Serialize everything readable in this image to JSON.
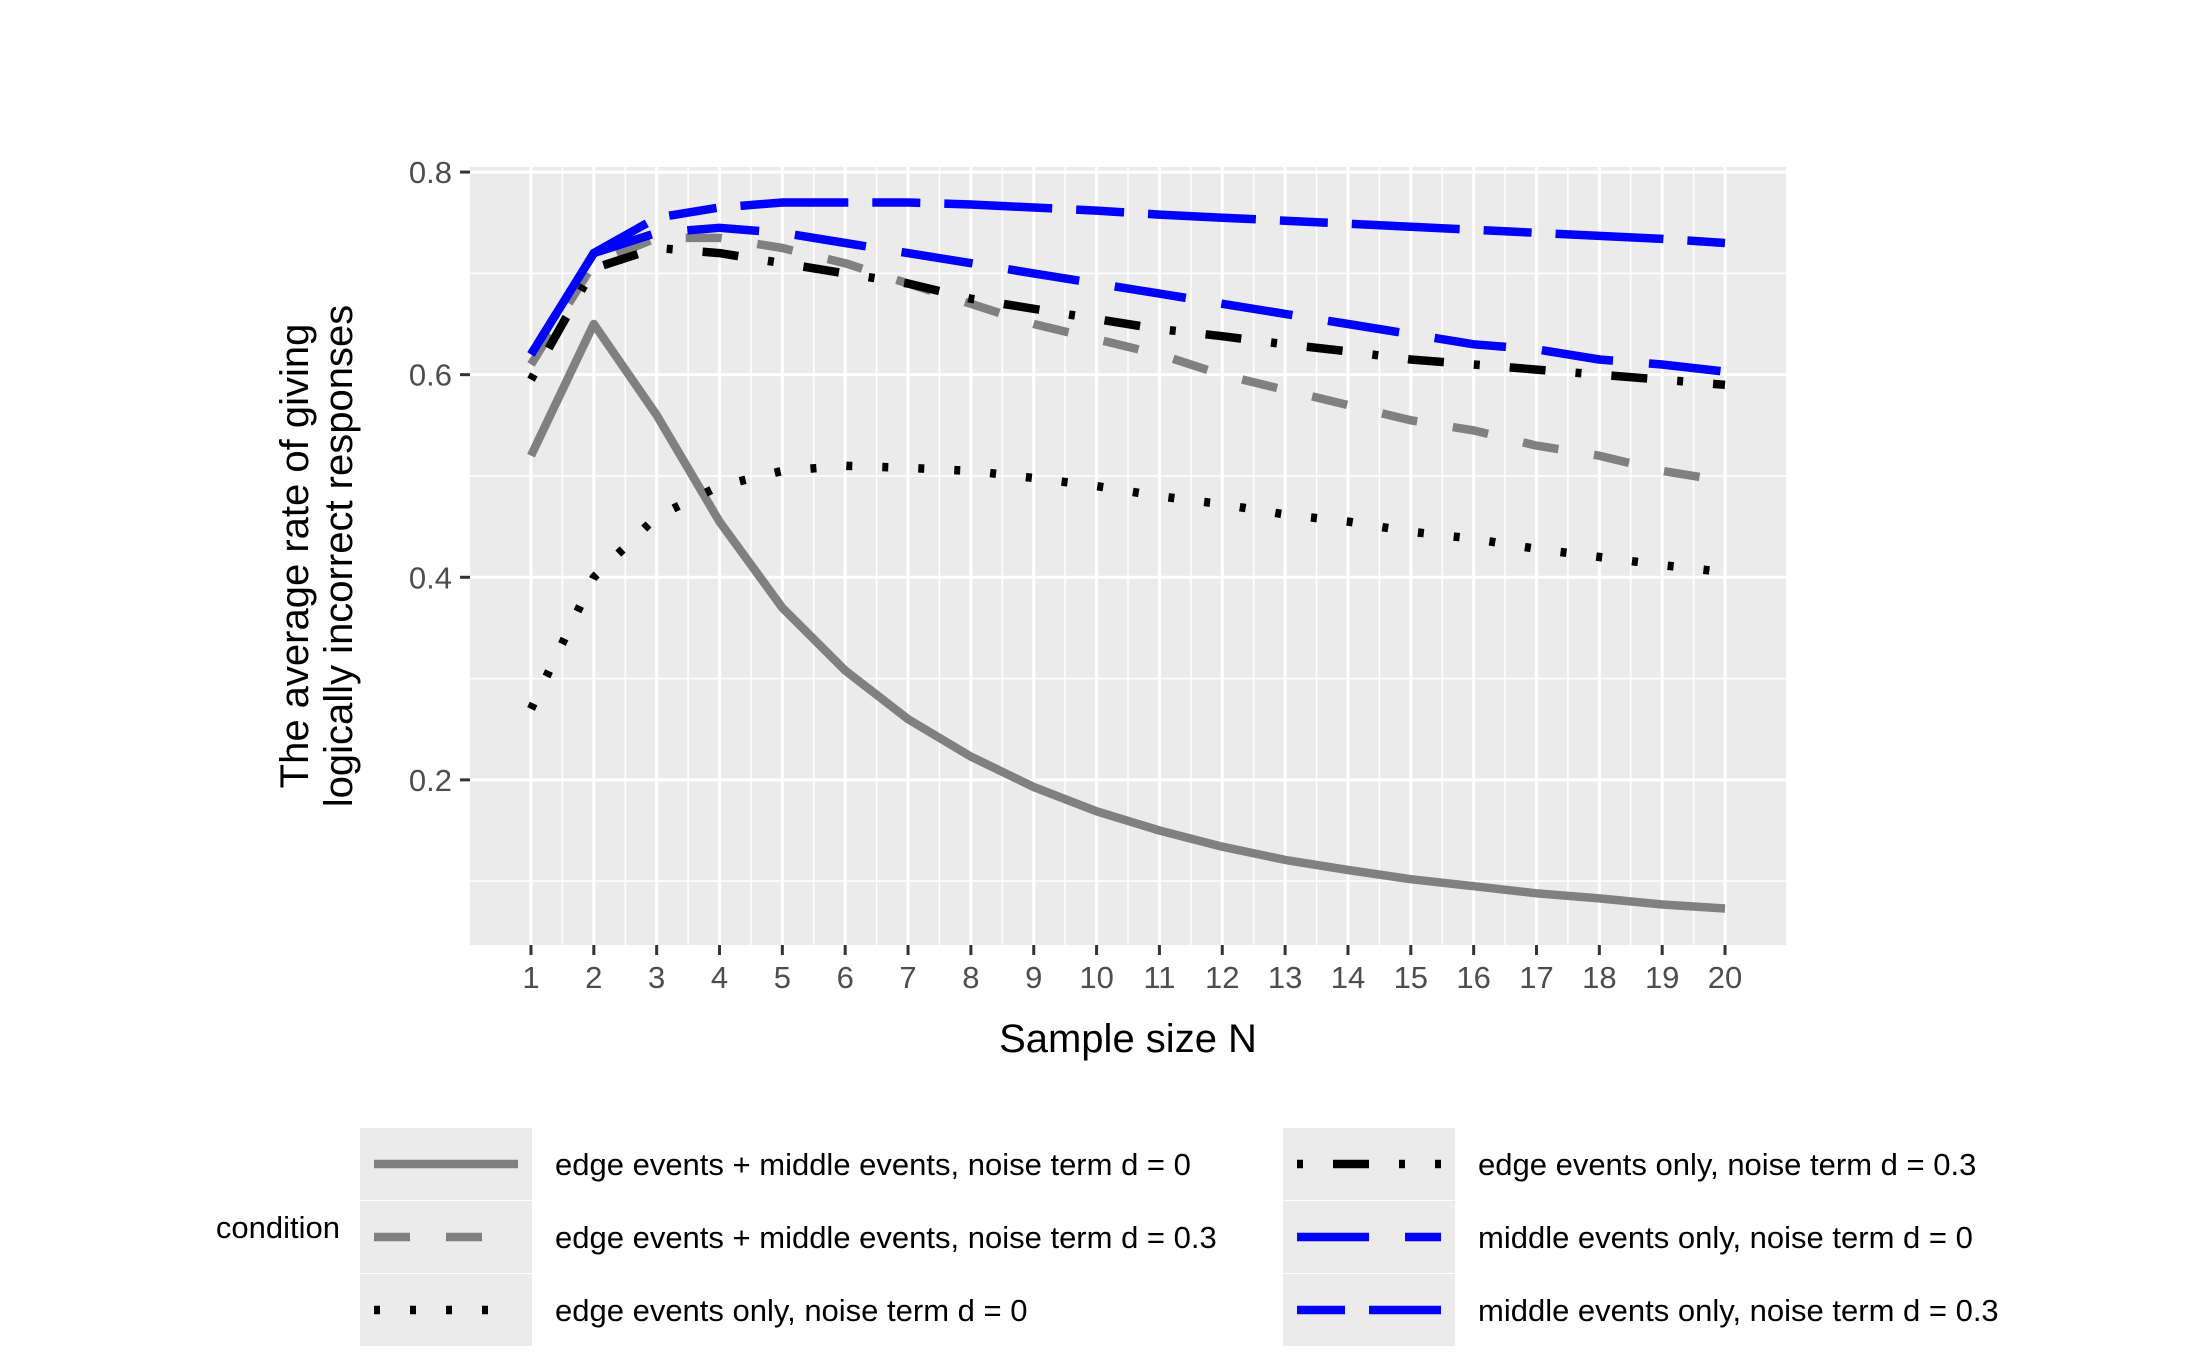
{
  "chart_data": {
    "type": "line",
    "title": "",
    "xlabel": "Sample size N",
    "ylabel_lines": [
      "The average rate of giving",
      "logically incorrect responses"
    ],
    "x": [
      1,
      2,
      3,
      4,
      5,
      6,
      7,
      8,
      9,
      10,
      11,
      12,
      13,
      14,
      15,
      16,
      17,
      18,
      19,
      20
    ],
    "x_ticks": [
      "1",
      "2",
      "3",
      "4",
      "5",
      "6",
      "7",
      "8",
      "9",
      "10",
      "11",
      "12",
      "13",
      "14",
      "15",
      "16",
      "17",
      "18",
      "19",
      "20"
    ],
    "y_ticks": [
      {
        "value": 0.2,
        "label": "0.2"
      },
      {
        "value": 0.4,
        "label": "0.4"
      },
      {
        "value": 0.6,
        "label": "0.6"
      },
      {
        "value": 0.8,
        "label": "0.8"
      }
    ],
    "xlim": [
      0.03,
      20.97
    ],
    "ylim": [
      0.037,
      0.805
    ],
    "grid": true,
    "background": "#ebebeb",
    "legend_title": "condition",
    "legend_position": "bottom",
    "series": [
      {
        "name": "edge events + middle events, noise term d = 0",
        "color": "#808080",
        "dash": "solid",
        "values": [
          0.52,
          0.65,
          0.56,
          0.455,
          0.37,
          0.308,
          0.26,
          0.223,
          0.193,
          0.169,
          0.15,
          0.134,
          0.121,
          0.111,
          0.102,
          0.095,
          0.088,
          0.083,
          0.077,
          0.073
        ]
      },
      {
        "name": "edge events + middle events, noise term d = 0.3",
        "color": "#808080",
        "dash": "dashed",
        "values": [
          0.61,
          0.71,
          0.735,
          0.735,
          0.725,
          0.71,
          0.69,
          0.67,
          0.65,
          0.635,
          0.62,
          0.6,
          0.585,
          0.57,
          0.555,
          0.545,
          0.53,
          0.52,
          0.505,
          0.495
        ]
      },
      {
        "name": "edge events only, noise term d = 0",
        "color": "#000000",
        "dash": "dotted",
        "values": [
          0.27,
          0.4,
          0.46,
          0.49,
          0.505,
          0.51,
          0.508,
          0.505,
          0.498,
          0.49,
          0.48,
          0.472,
          0.462,
          0.455,
          0.445,
          0.438,
          0.428,
          0.42,
          0.412,
          0.405
        ]
      },
      {
        "name": "edge events only, noise term d = 0.3",
        "color": "#000000",
        "dash": "dotdash",
        "values": [
          0.595,
          0.705,
          0.725,
          0.72,
          0.71,
          0.7,
          0.69,
          0.675,
          0.665,
          0.655,
          0.645,
          0.638,
          0.63,
          0.623,
          0.615,
          0.61,
          0.605,
          0.6,
          0.595,
          0.59
        ]
      },
      {
        "name": "middle events only, noise term d = 0",
        "color": "#0000ff",
        "dash": "longdash",
        "values": [
          0.62,
          0.72,
          0.74,
          0.745,
          0.74,
          0.73,
          0.72,
          0.71,
          0.7,
          0.69,
          0.68,
          0.67,
          0.66,
          0.65,
          0.64,
          0.63,
          0.625,
          0.615,
          0.61,
          0.603
        ]
      },
      {
        "name": "middle events only, noise term d = 0.3",
        "color": "#0000ff",
        "dash": "twodash",
        "values": [
          0.62,
          0.72,
          0.755,
          0.765,
          0.77,
          0.77,
          0.77,
          0.768,
          0.765,
          0.762,
          0.758,
          0.755,
          0.752,
          0.749,
          0.746,
          0.743,
          0.74,
          0.737,
          0.734,
          0.73
        ]
      }
    ]
  }
}
